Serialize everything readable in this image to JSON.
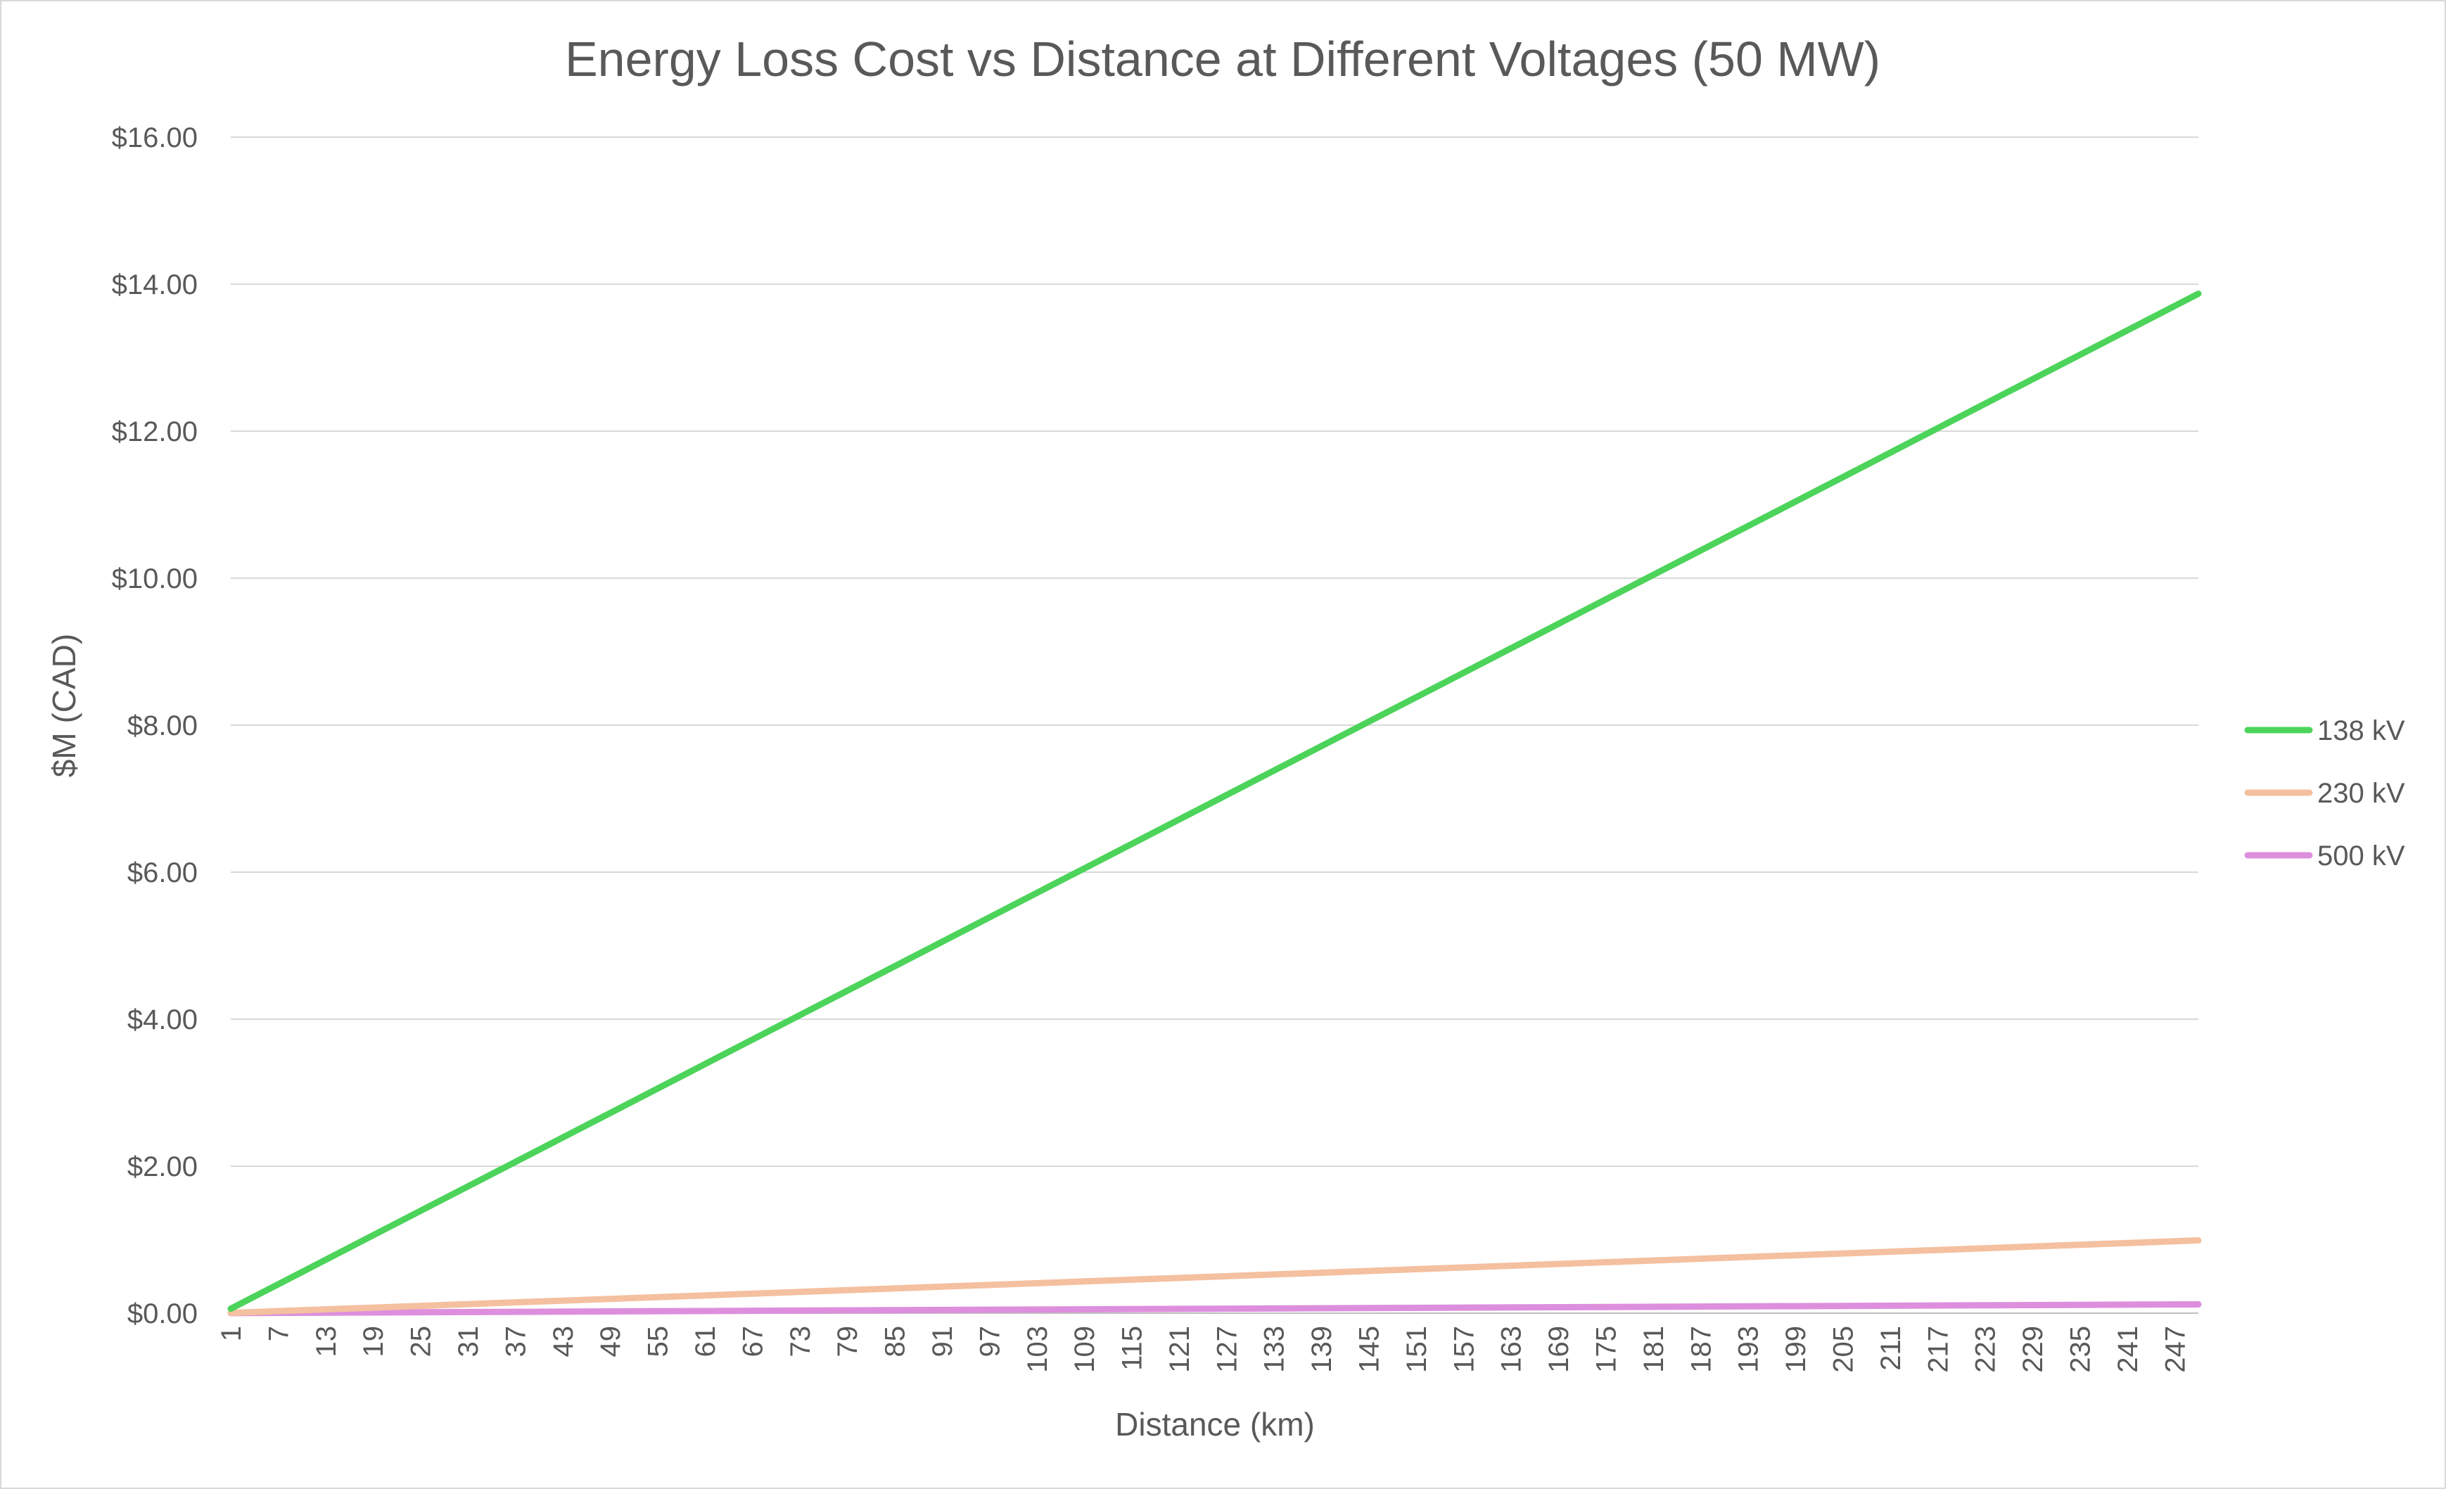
{
  "chart_data": {
    "type": "line",
    "title": "Energy Loss Cost vs Distance at Different Voltages (50 MW)",
    "xlabel": "Distance (km)",
    "ylabel": "$M (CAD)",
    "x": [
      1,
      250
    ],
    "x_tick_labels": [
      "1",
      "7",
      "13",
      "19",
      "25",
      "31",
      "37",
      "43",
      "49",
      "55",
      "61",
      "67",
      "73",
      "79",
      "85",
      "91",
      "97",
      "103",
      "109",
      "115",
      "121",
      "127",
      "133",
      "139",
      "145",
      "151",
      "157",
      "163",
      "169",
      "175",
      "181",
      "187",
      "193",
      "199",
      "205",
      "211",
      "217",
      "223",
      "229",
      "235",
      "241",
      "247"
    ],
    "x_tick_values": [
      1,
      7,
      13,
      19,
      25,
      31,
      37,
      43,
      49,
      55,
      61,
      67,
      73,
      79,
      85,
      91,
      97,
      103,
      109,
      115,
      121,
      127,
      133,
      139,
      145,
      151,
      157,
      163,
      169,
      175,
      181,
      187,
      193,
      199,
      205,
      211,
      217,
      223,
      229,
      235,
      241,
      247
    ],
    "y_tick_labels": [
      "$0.00",
      "$2.00",
      "$4.00",
      "$6.00",
      "$8.00",
      "$10.00",
      "$12.00",
      "$14.00",
      "$16.00"
    ],
    "ylim": [
      0,
      16
    ],
    "grid": true,
    "legend_position": "right",
    "series": [
      {
        "name": "138 kV",
        "color": "#4cd45a",
        "x": [
          1,
          250
        ],
        "values": [
          0.06,
          13.87
        ]
      },
      {
        "name": "230 kV",
        "color": "#f4c0a0",
        "x": [
          1,
          250
        ],
        "values": [
          0.004,
          0.99
        ]
      },
      {
        "name": "500 kV",
        "color": "#dd8fdd",
        "x": [
          1,
          250
        ],
        "values": [
          0.0008,
          0.12
        ]
      }
    ]
  }
}
